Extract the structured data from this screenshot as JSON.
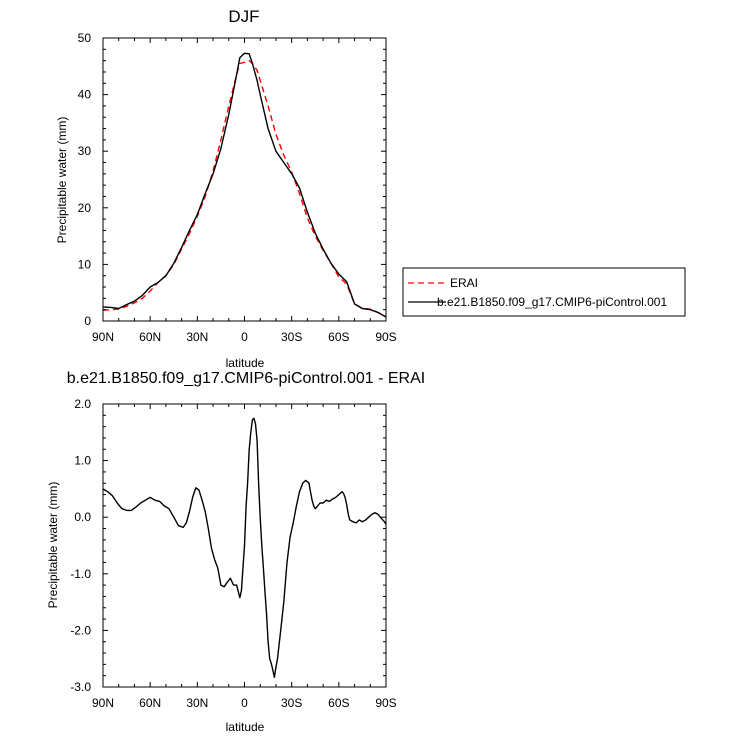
{
  "chart_data": [
    {
      "type": "line",
      "title": "DJF",
      "xlabel": "latitude",
      "ylabel": "Precipitable water (mm)",
      "xlim": [
        90,
        -90
      ],
      "ylim": [
        0,
        50
      ],
      "x_tick_values": [
        90,
        60,
        30,
        0,
        -30,
        -60,
        -90
      ],
      "x_tick_labels": [
        "90N",
        "60N",
        "30N",
        "0",
        "30S",
        "60S",
        "90S"
      ],
      "y_tick_values": [
        0,
        10,
        20,
        30,
        40,
        50
      ],
      "y_tick_labels": [
        "0",
        "10",
        "20",
        "30",
        "40",
        "50"
      ],
      "legend_position": "right, outside plot",
      "series": [
        {
          "name": "ERAI",
          "color": "#ff0000",
          "style": "dashed",
          "x": [
            90,
            85,
            80,
            75,
            70,
            65,
            60,
            55,
            50,
            45,
            40,
            35,
            30,
            25,
            20,
            15,
            10,
            5,
            3,
            0,
            -3,
            -5,
            -8,
            -10,
            -15,
            -20,
            -25,
            -30,
            -35,
            -40,
            -45,
            -50,
            -55,
            -60,
            -65,
            -70,
            -75,
            -80,
            -85,
            -90
          ],
          "values": [
            1.9,
            2.0,
            2.1,
            2.6,
            3.2,
            4.0,
            5.3,
            6.8,
            8.0,
            10.0,
            12.7,
            15.5,
            18.5,
            22.0,
            26.5,
            32.0,
            38.0,
            43.5,
            45.5,
            45.7,
            46.0,
            45.5,
            44.3,
            42.5,
            38.0,
            33.0,
            29.3,
            26.3,
            22.5,
            18.2,
            15.0,
            12.5,
            10.2,
            7.8,
            6.5,
            3.0,
            2.2,
            2.1,
            1.5,
            0.7
          ]
        },
        {
          "name": "b.e21.B1850.f09_g17.CMIP6-piControl.001",
          "color": "#000000",
          "style": "solid",
          "x": [
            90,
            85,
            80,
            75,
            70,
            65,
            60,
            55,
            50,
            45,
            40,
            35,
            30,
            25,
            20,
            15,
            10,
            5,
            3,
            0,
            -3,
            -5,
            -8,
            -10,
            -15,
            -20,
            -25,
            -30,
            -35,
            -40,
            -45,
            -50,
            -55,
            -60,
            -65,
            -70,
            -75,
            -80,
            -85,
            -90
          ],
          "values": [
            2.5,
            2.4,
            2.2,
            2.9,
            3.5,
            4.5,
            6.0,
            6.8,
            8.0,
            10.2,
            13.0,
            16.0,
            18.8,
            22.5,
            26.0,
            30.5,
            36.5,
            43.5,
            46.5,
            47.3,
            47.2,
            45.5,
            42.5,
            40.0,
            34.0,
            30.0,
            28.0,
            26.0,
            23.5,
            19.2,
            15.5,
            12.7,
            10.2,
            8.3,
            6.9,
            3.0,
            2.2,
            2.0,
            1.5,
            0.7
          ]
        }
      ]
    },
    {
      "type": "line",
      "title": "b.e21.B1850.f09_g17.CMIP6-piControl.001 - ERAI",
      "xlabel": "latitude",
      "ylabel": "Precipitable water (mm)",
      "xlim": [
        90,
        -90
      ],
      "ylim": [
        -3,
        2
      ],
      "x_tick_values": [
        90,
        60,
        30,
        0,
        -30,
        -60,
        -90
      ],
      "x_tick_labels": [
        "90N",
        "60N",
        "30N",
        "0",
        "30S",
        "60S",
        "90S"
      ],
      "y_tick_values": [
        2,
        1,
        0,
        -1,
        -2,
        -3
      ],
      "y_tick_labels": [
        "2.0",
        "1.0",
        "0.0",
        "-1.0",
        "-2.0",
        "-3.0"
      ],
      "series": [
        {
          "color": "#000000",
          "style": "solid",
          "x": [
            90,
            87,
            84,
            81,
            78,
            75,
            72,
            69,
            66,
            63,
            60,
            57,
            54,
            51,
            48,
            45,
            42,
            39,
            37,
            35,
            33,
            31,
            29,
            27,
            25,
            23,
            21,
            19,
            17,
            15,
            13,
            11,
            9,
            7,
            5,
            3,
            2,
            0,
            -1,
            -2,
            -3,
            -4,
            -5,
            -6,
            -7,
            -8,
            -9,
            -10,
            -11,
            -12,
            -13,
            -14,
            -15,
            -16,
            -17,
            -18,
            -19,
            -20,
            -21,
            -23,
            -25,
            -27,
            -29,
            -31,
            -33,
            -35,
            -37,
            -39,
            -41,
            -42,
            -43,
            -44,
            -45,
            -46,
            -48,
            -50,
            -52,
            -54,
            -56,
            -58,
            -60,
            -62,
            -63,
            -64,
            -65,
            -66,
            -67,
            -69,
            -71,
            -73,
            -75,
            -77,
            -79,
            -81,
            -83,
            -85,
            -87,
            -89,
            -90
          ],
          "values": [
            0.5,
            0.45,
            0.38,
            0.25,
            0.15,
            0.12,
            0.12,
            0.18,
            0.25,
            0.3,
            0.35,
            0.3,
            0.28,
            0.2,
            0.15,
            0.0,
            -0.15,
            -0.18,
            -0.1,
            0.1,
            0.35,
            0.52,
            0.48,
            0.3,
            0.1,
            -0.2,
            -0.55,
            -0.75,
            -0.9,
            -1.2,
            -1.23,
            -1.15,
            -1.08,
            -1.2,
            -1.2,
            -1.42,
            -1.3,
            -0.5,
            0.2,
            0.6,
            1.2,
            1.5,
            1.72,
            1.75,
            1.65,
            1.35,
            0.6,
            0.0,
            -0.5,
            -0.9,
            -1.3,
            -1.7,
            -2.2,
            -2.5,
            -2.58,
            -2.7,
            -2.83,
            -2.65,
            -2.5,
            -2.0,
            -1.5,
            -0.8,
            -0.35,
            -0.1,
            0.2,
            0.45,
            0.6,
            0.65,
            0.6,
            0.45,
            0.3,
            0.2,
            0.15,
            0.18,
            0.25,
            0.25,
            0.3,
            0.28,
            0.32,
            0.35,
            0.4,
            0.45,
            0.42,
            0.35,
            0.22,
            0.05,
            -0.05,
            -0.08,
            -0.1,
            -0.05,
            -0.08,
            -0.05,
            0.0,
            0.05,
            0.08,
            0.05,
            -0.02,
            -0.08,
            -0.12
          ]
        }
      ]
    }
  ]
}
